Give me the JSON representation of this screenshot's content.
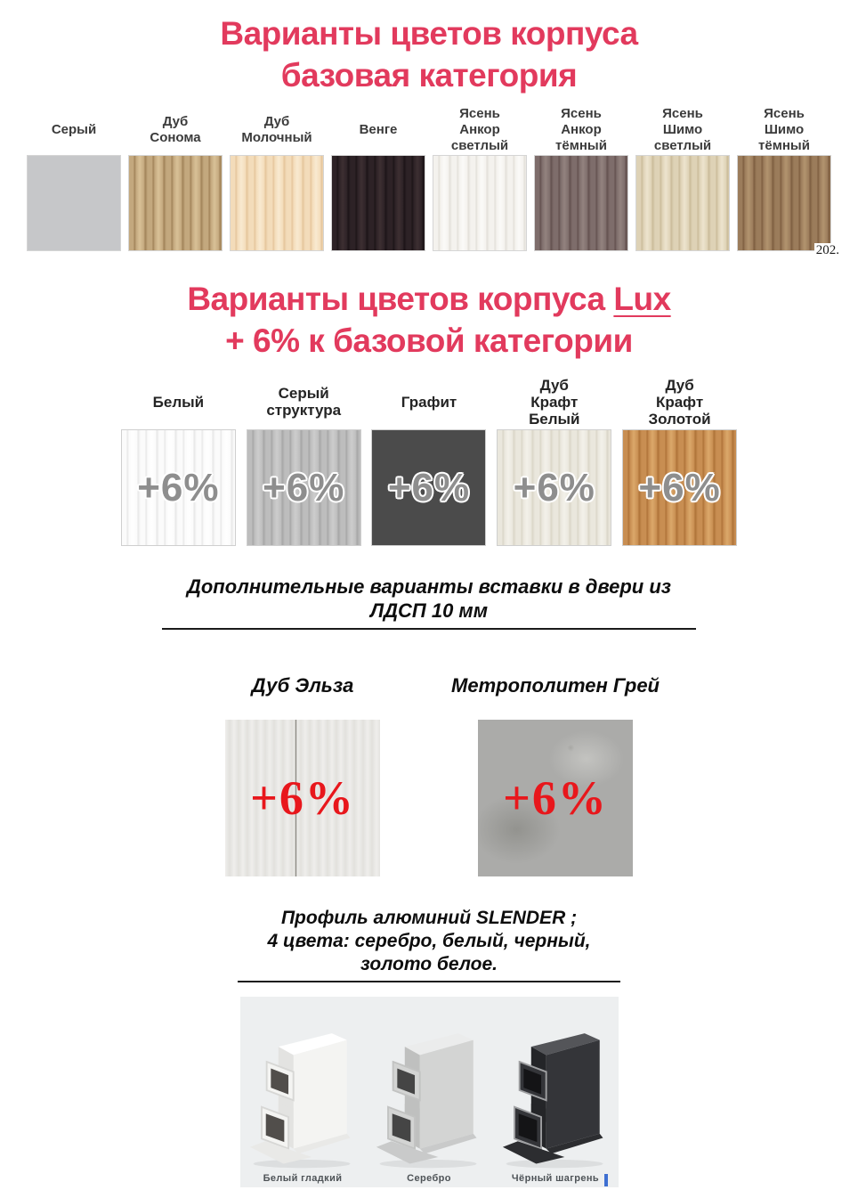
{
  "page": {
    "background": "#ffffff",
    "accent_red": "#e23a5d",
    "badge_red": "#e8171c",
    "label_gray": "#3b3b3b"
  },
  "base": {
    "title_line1": "Варианты цветов корпуса",
    "title_line2": "базовая категория",
    "watermark": "202.",
    "swatches": [
      {
        "label": "Серый",
        "tex": "flat",
        "base": "#c6c7c9"
      },
      {
        "label": "Дуб\nСонома",
        "tex": "wood",
        "base": "#c3a87e",
        "grain": "#9f8157",
        "light": "#d9c197"
      },
      {
        "label": "Дуб\nМолочный",
        "tex": "wood",
        "base": "#f3dcba",
        "grain": "#e4c49a",
        "light": "#f9ead1"
      },
      {
        "label": "Венге",
        "tex": "wood",
        "base": "#2d2226",
        "grain": "#1c1417",
        "light": "#3d2f32"
      },
      {
        "label": "Ясень\nАнкор\nсветлый",
        "tex": "wood",
        "base": "#f4f2ee",
        "grain": "#e2dfd8",
        "light": "#fbfaf8"
      },
      {
        "label": "Ясень\nАнкор\nтёмный",
        "tex": "wood",
        "base": "#7e6d6b",
        "grain": "#62504e",
        "light": "#93837f"
      },
      {
        "label": "Ясень\nШимо\nсветлый",
        "tex": "wood",
        "base": "#ded2b6",
        "grain": "#c9ba98",
        "light": "#ede4ce"
      },
      {
        "label": "Ясень\nШимо\nтёмный",
        "tex": "wood",
        "base": "#9b7c5b",
        "grain": "#7c5d3f",
        "light": "#b2946f"
      }
    ]
  },
  "lux": {
    "title_prefix": "Варианты цветов корпуса ",
    "title_lux": "Lux",
    "title_line2": "+ 6% к базовой категории",
    "badge": "+6%",
    "badge_gray": "#8e8e8e",
    "swatches": [
      {
        "label": "Белый",
        "tex": "wood",
        "base": "#fbfbfb",
        "grain": "#e7e7e7",
        "light": "#ffffff"
      },
      {
        "label": "Серый\nструктура",
        "tex": "wood",
        "base": "#bdbdbd",
        "grain": "#a5a5a5",
        "light": "#cdcdcd"
      },
      {
        "label": "Графит",
        "tex": "flat",
        "base": "#4b4b4b"
      },
      {
        "label": "Дуб\nКрафт\nБелый",
        "tex": "wood",
        "base": "#eae7dd",
        "grain": "#d9d5c6",
        "light": "#f3f1ea"
      },
      {
        "label": "Дуб\nКрафт\nЗолотой",
        "tex": "wood",
        "base": "#c88e52",
        "grain": "#ad7137",
        "light": "#dba86a"
      }
    ]
  },
  "inserts": {
    "heading": "Дополнительные варианты вставки в двери из\nЛДСП 10 мм",
    "badge": "+6%",
    "items": [
      {
        "label": "Дуб Эльза",
        "tex": "elsa",
        "base": "#efeeec",
        "grain": "#77756e",
        "light": "#e2e1dd"
      },
      {
        "label": "Метрополитен Грей",
        "tex": "concrete",
        "base": "#ababa9",
        "grain": "#93938f",
        "light": "#c3c3c0"
      }
    ]
  },
  "profile": {
    "heading": "Профиль алюминий SLENDER ;\n4 цвета: серебро, белый, черный,\nзолото белое.",
    "photo_bg": "#edeff0",
    "caret_color": "#3e6fd1",
    "items": [
      {
        "label": "Белый гладкий",
        "top": "#ffffff",
        "face": "#f4f4f2",
        "side": "#e3e3e1",
        "base": "#e9e9e7",
        "hole": "#514e4b",
        "stroke": "#d7d7d5"
      },
      {
        "label": "Серебро",
        "top": "#ebecec",
        "face": "#d3d4d3",
        "side": "#bfc0bf",
        "base": "#c9caca",
        "hole": "#454545",
        "stroke": "#c2c3c2"
      },
      {
        "label": "Чёрный шагрень",
        "top": "#545559",
        "face": "#343539",
        "side": "#242528",
        "base": "#2c2d30",
        "hole": "#141416",
        "stroke": "#9fa0a2"
      }
    ]
  }
}
